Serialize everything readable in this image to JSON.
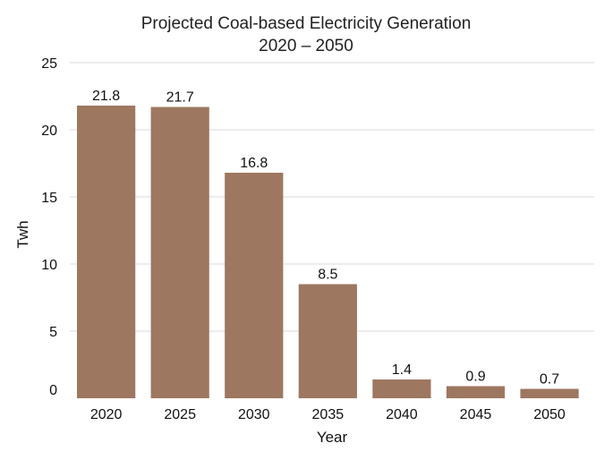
{
  "chart_data": {
    "type": "bar",
    "title": "Projected Coal-based Electricity Generation",
    "subtitle": "2020 – 2050",
    "xlabel": "Year",
    "ylabel": "Twh",
    "categories": [
      "2020",
      "2025",
      "2030",
      "2035",
      "2040",
      "2045",
      "2050"
    ],
    "values": [
      21.8,
      21.7,
      16.8,
      8.5,
      1.4,
      0.9,
      0.7
    ],
    "data_labels": [
      "21.8",
      "21.7",
      "16.8",
      "8.5",
      "1.4",
      "0.9",
      "0.7"
    ],
    "ylim": [
      0,
      25
    ],
    "yticks": [
      "0",
      "5",
      "10",
      "15",
      "20",
      "25"
    ],
    "grid": true,
    "bar_color": "#9e7760",
    "grid_color": "#d9d9d9"
  }
}
